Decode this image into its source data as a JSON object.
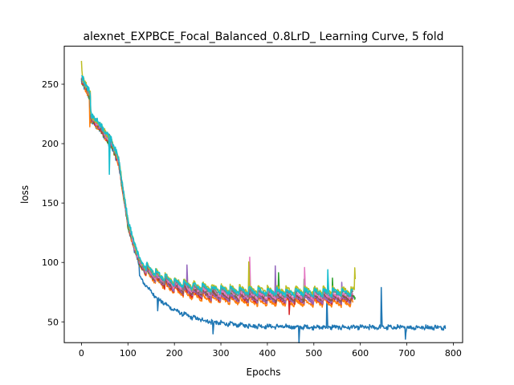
{
  "chart_data": {
    "type": "line",
    "title": "alexnet_EXPBCE_Focal_Balanced_0.8LrD_ Learning Curve, 5 fold",
    "xlabel": "Epochs",
    "ylabel": "loss",
    "xlim": [
      -37,
      820
    ],
    "ylim": [
      32.5,
      282
    ],
    "xticks": [
      0,
      100,
      200,
      300,
      400,
      500,
      600,
      700,
      800
    ],
    "yticks": [
      50,
      100,
      150,
      200,
      250
    ],
    "grid": false,
    "legend": "none",
    "series": [
      {
        "color": "#1f77b4",
        "length": 785,
        "end": 55,
        "spikes": [
          [
            164,
            -12
          ],
          [
            283,
            -11
          ],
          [
            468,
            -14
          ],
          [
            528,
            28
          ],
          [
            645,
            32
          ],
          [
            697,
            -10
          ]
        ]
      },
      {
        "color": "#ff7f0e",
        "length": 585,
        "end": 67,
        "spikes": [
          [
            18,
            -22
          ]
        ]
      },
      {
        "color": "#2ca02c",
        "length": 590,
        "end": 70,
        "spikes": [
          [
            424,
            20
          ],
          [
            479,
            18
          ],
          [
            540,
            14
          ]
        ]
      },
      {
        "color": "#d62728",
        "length": 585,
        "end": 68,
        "spikes": [
          [
            447,
            -12
          ]
        ]
      },
      {
        "color": "#9467bd",
        "length": 585,
        "end": 68,
        "spikes": [
          [
            227,
            22
          ],
          [
            417,
            30
          ],
          [
            560,
            12
          ]
        ]
      },
      {
        "color": "#8c564b",
        "length": 585,
        "end": 69,
        "spikes": []
      },
      {
        "color": "#e377c2",
        "length": 585,
        "end": 70,
        "spikes": [
          [
            362,
            30
          ],
          [
            480,
            20
          ]
        ]
      },
      {
        "color": "#7f7f7f",
        "length": 585,
        "end": 71,
        "spikes": []
      },
      {
        "color": "#bcbd22",
        "length": 590,
        "end": 73,
        "spikes": [
          [
            0,
            12
          ],
          [
            360,
            20
          ],
          [
            588,
            20
          ]
        ]
      },
      {
        "color": "#17becf",
        "length": 585,
        "end": 71,
        "spikes": [
          [
            60,
            -32
          ],
          [
            530,
            20
          ]
        ]
      }
    ]
  }
}
